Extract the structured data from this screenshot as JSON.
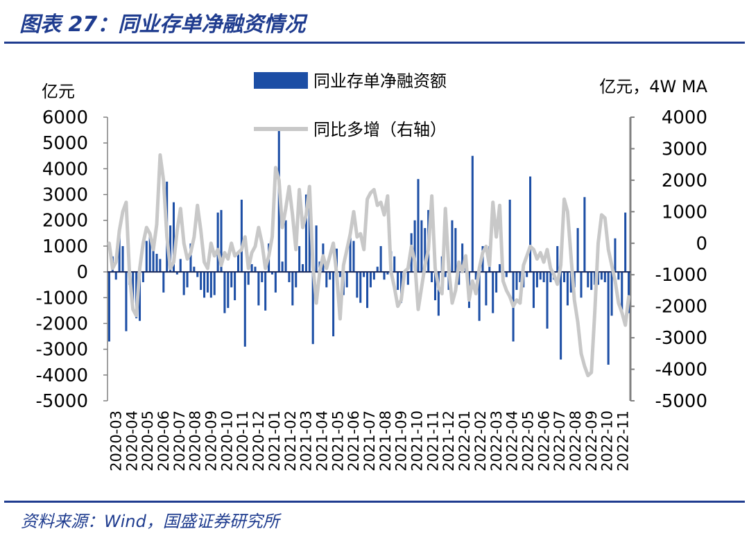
{
  "header": {
    "title": "图表 27：同业存单净融资情况"
  },
  "footer": {
    "source": "资料来源：Wind，国盛证券研究所"
  },
  "colors": {
    "bars": "#1c4ea5",
    "line": "#c8c8c8",
    "brand": "#1f3c8f",
    "axis": "#808080"
  },
  "chart_data": {
    "type": "bar",
    "left_axis_unit": "亿元",
    "right_axis_unit": "亿元，4W MA",
    "ylim_left": [
      -5000,
      6000
    ],
    "ylim_right": [
      -5000,
      4000
    ],
    "yticks_left": [
      "6000",
      "5000",
      "4000",
      "3000",
      "2000",
      "1000",
      "0",
      "-1000",
      "-2000",
      "-3000",
      "-4000",
      "-5000"
    ],
    "yticks_right": [
      "4000",
      "3000",
      "2000",
      "1000",
      "0",
      "-1000",
      "-2000",
      "-3000",
      "-4000",
      "-5000"
    ],
    "legend": [
      "同业存单净融资额",
      "同比多增（右轴）"
    ],
    "legend_position": "top-center",
    "x_ticks": [
      "2020-03",
      "2020-04",
      "2020-05",
      "2020-06",
      "2020-07",
      "2020-08",
      "2020-09",
      "2020-10",
      "2020-11",
      "2020-12",
      "2021-01",
      "2021-02",
      "2021-03",
      "2021-04",
      "2021-05",
      "2021-06",
      "2021-07",
      "2021-08",
      "2021-09",
      "2021-10",
      "2021-11",
      "2021-12",
      "2022-01",
      "2022-02",
      "2022-03",
      "2022-04",
      "2022-05",
      "2022-06",
      "2022-07",
      "2022-08",
      "2022-09",
      "2022-10",
      "2022-11"
    ],
    "series": [
      {
        "name": "同业存单净融资额",
        "axis": "left",
        "values": [
          -2700,
          600,
          -300,
          1400,
          1000,
          -2300,
          -500,
          -1200,
          -1800,
          -1900,
          -400,
          1200,
          1500,
          900,
          700,
          500,
          -800,
          3500,
          1800,
          2700,
          -100,
          500,
          -900,
          -600,
          1100,
          200,
          -200,
          -700,
          -1000,
          -800,
          -1000,
          -900,
          2300,
          2400,
          -1600,
          -1400,
          -600,
          -1100,
          700,
          2800,
          -2900,
          -500,
          300,
          200,
          -1300,
          -400,
          -1500,
          1100,
          -100,
          -800,
          5500,
          400,
          2000,
          -400,
          -1300,
          -600,
          1000,
          300,
          3000,
          2600,
          -2800,
          1800,
          400,
          1100,
          -600,
          -300,
          -2500,
          900,
          -200,
          -900,
          -600,
          1600,
          1200,
          -1000,
          -1200,
          -200,
          -1400,
          -600,
          -300,
          200,
          1000,
          -300,
          -100,
          800,
          600,
          -700,
          -1200,
          -100,
          -500,
          1500,
          2000,
          3600,
          2000,
          1700,
          2400,
          -400,
          -1100,
          -1700,
          600,
          -200,
          -700,
          2000,
          1700,
          -500,
          1100,
          500,
          -1400,
          4500,
          -300,
          -1900,
          1000,
          -1300,
          1000,
          -1600,
          -800,
          300,
          -200,
          -200,
          2800,
          -2700,
          -700,
          -400,
          -600,
          -200,
          3700,
          -1400,
          -600,
          -300,
          -400,
          -2200,
          -400,
          -300,
          1000,
          -3400,
          -400,
          -1300,
          -800,
          -600,
          1700,
          -1000,
          2900,
          -600,
          -700,
          -500,
          -500,
          -300,
          -400,
          -3600,
          -1700,
          1300,
          -300,
          -1500,
          2300,
          -1600
        ]
      },
      {
        "name": "同比多增（右轴）",
        "axis": "right",
        "values": [
          0,
          -800,
          -600,
          400,
          1000,
          1300,
          -1000,
          -2100,
          -2300,
          -800,
          0,
          500,
          300,
          -200,
          600,
          2800,
          2000,
          200,
          -800,
          -600,
          400,
          1100,
          0,
          -500,
          -300,
          200,
          1200,
          400,
          -600,
          -800,
          0,
          -400,
          -200,
          -700,
          -300,
          -500,
          0,
          -400,
          -300,
          -200,
          200,
          -800,
          -300,
          -100,
          500,
          0,
          -800,
          -400,
          200,
          2400,
          2000,
          500,
          1100,
          1800,
          900,
          -200,
          1700,
          500,
          900,
          1800,
          -700,
          -1900,
          -900,
          -400,
          -800,
          -400,
          0,
          -1000,
          -2400,
          -700,
          -200,
          300,
          1000,
          200,
          300,
          -200,
          1400,
          1600,
          1700,
          1200,
          1300,
          900,
          1500,
          -900,
          -1400,
          -2000,
          -1800,
          -900,
          -800,
          -100,
          -600,
          -2100,
          -1400,
          -700,
          -200,
          1500,
          -800,
          -1400,
          -1600,
          1100,
          -800,
          -1900,
          -1500,
          -600,
          -900,
          -400,
          -1800,
          -1200,
          -1600,
          -800,
          -300,
          -100,
          -700,
          1300,
          200,
          1200,
          -1200,
          -1500,
          -1700,
          -2000,
          -1800,
          -1900,
          -700,
          -400,
          -100,
          -200,
          -500,
          -300,
          -600,
          -200,
          -800,
          -1000,
          -1300,
          -700,
          1400,
          1000,
          -400,
          -1800,
          -2500,
          -3500,
          -3900,
          -4200,
          -4100,
          -2200,
          0,
          900,
          800,
          -200,
          -700,
          -1200,
          -1900,
          -2200,
          -2600,
          -1700
        ]
      }
    ]
  }
}
